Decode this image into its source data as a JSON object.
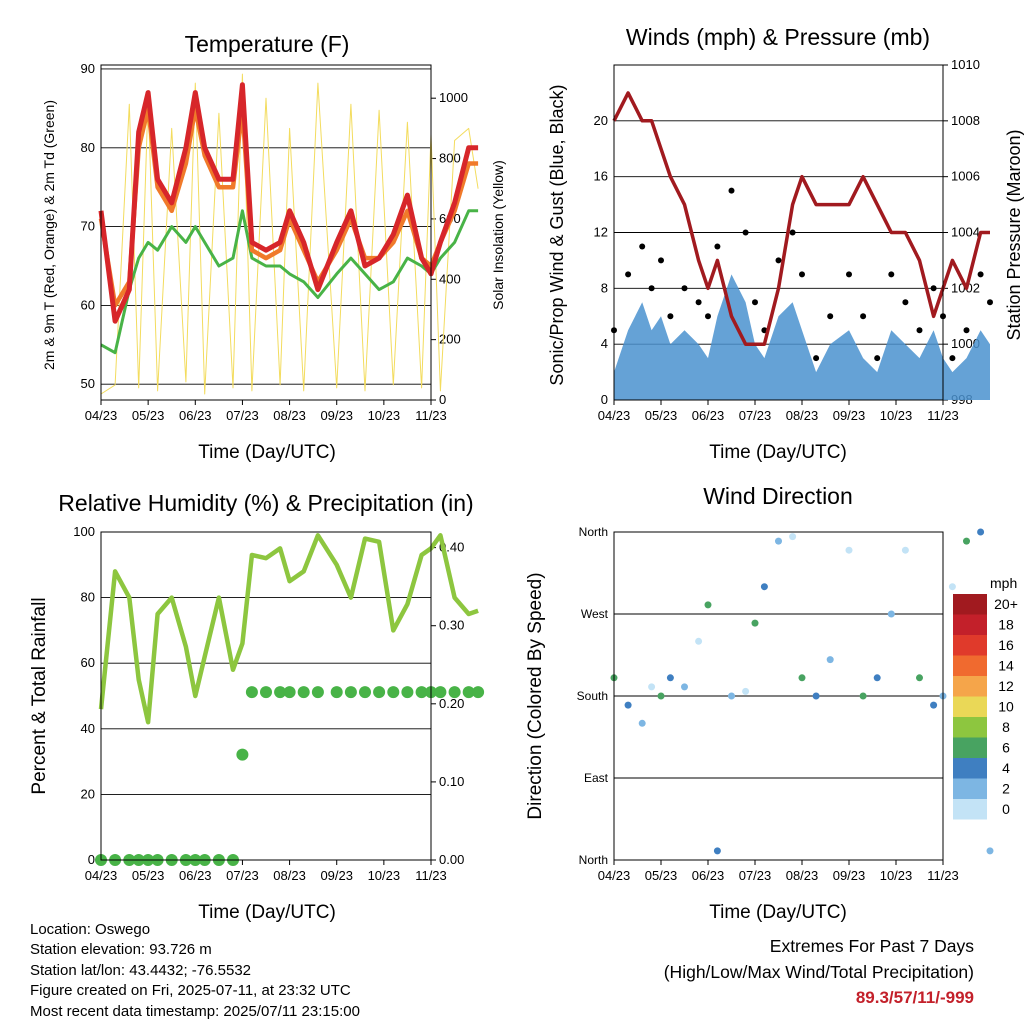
{
  "x_ticks": [
    "04/23",
    "05/23",
    "06/23",
    "07/23",
    "08/23",
    "09/23",
    "10/23",
    "11/23"
  ],
  "info": {
    "location": "Location: Oswego",
    "elevation": "Station elevation: 93.726 m",
    "latlon": "Station lat/lon: 43.4432; -76.5532",
    "created": "Figure created on Fri, 2025-07-11, at 23:32 UTC",
    "recent": "Most recent data timestamp: 2025/07/11 23:15:00"
  },
  "extremes": {
    "line1": "Extremes For Past 7 Days",
    "line2": "(High/Low/Max Wind/Total Precipitation)",
    "value": "89.3/57/11/-999",
    "color": "#c3202a"
  },
  "chart_data": [
    {
      "id": "temperature",
      "type": "line",
      "title": "Temperature (F)",
      "xlabel": "Time (Day/UTC)",
      "ylabel": "2m & 9m T (Red, Orange) & 2m Td (Green)",
      "ylabel_right": "Solar Insolation (Yellow)",
      "ylim": [
        48,
        90.5
      ],
      "ylim_right": [
        0,
        1110
      ],
      "yticks": [
        50,
        60,
        70,
        80,
        90
      ],
      "yticks_right": [
        0,
        200,
        400,
        600,
        800,
        1000
      ],
      "x": [
        0,
        0.3,
        0.6,
        0.8,
        1.0,
        1.2,
        1.5,
        1.8,
        2.0,
        2.2,
        2.5,
        2.8,
        3.0,
        3.2,
        3.5,
        3.8,
        4.0,
        4.3,
        4.6,
        5.0,
        5.3,
        5.6,
        5.9,
        6.2,
        6.5,
        6.8,
        7.0,
        7.2,
        7.5,
        7.8,
        8.0
      ],
      "series": [
        {
          "color": "#d7262a",
          "values": [
            72,
            58,
            62,
            82,
            87,
            76,
            73,
            80,
            87,
            80,
            76,
            76,
            88,
            68,
            67,
            68,
            72,
            68,
            62,
            68,
            72,
            65,
            66,
            69,
            74,
            66,
            64,
            68,
            73,
            80,
            80
          ]
        },
        {
          "color": "#f07a2a",
          "values": [
            71,
            60,
            63,
            80,
            85,
            75,
            72,
            78,
            85,
            79,
            75,
            75,
            85,
            67,
            66,
            67,
            71,
            67,
            63,
            67,
            71,
            66,
            66,
            68,
            72,
            66,
            65,
            68,
            72,
            78,
            78
          ]
        },
        {
          "color": "#48b347",
          "values": [
            55,
            54,
            62,
            66,
            68,
            67,
            70,
            68,
            70,
            68,
            65,
            66,
            72,
            66,
            65,
            65,
            64,
            63,
            61,
            64,
            66,
            64,
            62,
            63,
            66,
            65,
            64,
            66,
            68,
            72,
            72
          ]
        },
        {
          "color": "#f3dc5e",
          "values": [
            20,
            50,
            980,
            40,
            1000,
            30,
            900,
            60,
            1050,
            20,
            950,
            40,
            1080,
            30,
            1000,
            50,
            900,
            30,
            1050,
            40,
            980,
            30,
            960,
            50,
            920,
            40,
            880,
            30,
            860,
            900,
            700
          ]
        }
      ]
    },
    {
      "id": "winds",
      "type": "scatter",
      "title": "Winds (mph) & Pressure (mb)",
      "xlabel": "Time (Day/UTC)",
      "ylabel": "Sonic/Prop Wind & Gust (Blue, Black)",
      "ylabel_right": "Station Pressure (Maroon)",
      "ylim": [
        0,
        24
      ],
      "ylim_right": [
        998,
        1010
      ],
      "yticks": [
        0,
        4,
        8,
        12,
        16,
        20
      ],
      "yticks_right": [
        998,
        1000,
        1002,
        1004,
        1006,
        1008,
        1010
      ],
      "x": [
        0,
        0.3,
        0.6,
        0.8,
        1.0,
        1.2,
        1.5,
        1.8,
        2.0,
        2.2,
        2.5,
        2.8,
        3.0,
        3.2,
        3.5,
        3.8,
        4.0,
        4.3,
        4.6,
        5.0,
        5.3,
        5.6,
        5.9,
        6.2,
        6.5,
        6.8,
        7.0,
        7.2,
        7.5,
        7.8,
        8.0
      ],
      "series": [
        {
          "color": "#4a92cf",
          "values": [
            2,
            5,
            7,
            5,
            6,
            4,
            5,
            4,
            3,
            6,
            9,
            7,
            4,
            3,
            6,
            7,
            5,
            2,
            4,
            5,
            3,
            2,
            5,
            4,
            3,
            5,
            3,
            2,
            3,
            5,
            4
          ]
        },
        {
          "color": "#000000",
          "values": [
            5,
            9,
            11,
            8,
            10,
            6,
            8,
            7,
            6,
            11,
            15,
            12,
            7,
            5,
            10,
            12,
            9,
            3,
            6,
            9,
            6,
            3,
            9,
            7,
            5,
            8,
            6,
            3,
            5,
            9,
            7
          ]
        },
        {
          "color": "#a11a1f",
          "values": [
            1008,
            1009,
            1008,
            1008,
            1007,
            1006,
            1005,
            1003,
            1002,
            1003,
            1001,
            1000,
            1000,
            1000,
            1002,
            1005,
            1006,
            1005,
            1005,
            1005,
            1006,
            1005,
            1004,
            1004,
            1003,
            1001,
            1002,
            1003,
            1002,
            1004,
            1004
          ]
        }
      ]
    },
    {
      "id": "humidity",
      "type": "line",
      "title": "Relative Humidity (%) & Precipitation (in)",
      "xlabel": "Time (Day/UTC)",
      "ylabel": "Percent & Total Rainfall",
      "ylim": [
        0,
        100
      ],
      "ylim_right": [
        0,
        0.42
      ],
      "yticks": [
        0,
        20,
        40,
        60,
        80,
        100
      ],
      "yticks_right": [
        0.0,
        0.1,
        0.2,
        0.3,
        0.4
      ],
      "yticklabels_right": [
        "0.00",
        "0.10",
        "0.20",
        "0.30",
        "0.40"
      ],
      "x": [
        0,
        0.3,
        0.6,
        0.8,
        1.0,
        1.2,
        1.5,
        1.8,
        2.0,
        2.2,
        2.5,
        2.8,
        3.0,
        3.2,
        3.5,
        3.8,
        4.0,
        4.3,
        4.6,
        5.0,
        5.3,
        5.6,
        5.9,
        6.2,
        6.5,
        6.8,
        7.0,
        7.2,
        7.5,
        7.8,
        8.0
      ],
      "series": [
        {
          "color": "#8dc63f",
          "values": [
            46,
            88,
            80,
            55,
            42,
            75,
            80,
            65,
            50,
            62,
            80,
            58,
            66,
            93,
            92,
            95,
            85,
            88,
            99,
            90,
            80,
            98,
            97,
            70,
            78,
            93,
            95,
            99,
            80,
            75,
            76
          ]
        },
        {
          "color": "#48b347",
          "values": [
            0,
            0,
            0,
            0,
            0,
            0,
            0,
            0,
            0,
            0,
            0,
            0,
            0.135,
            0.215,
            0.215,
            0.215,
            0.215,
            0.215,
            0.215,
            0.215,
            0.215,
            0.215,
            0.215,
            0.215,
            0.215,
            0.215,
            0.215,
            0.215,
            0.215,
            0.215,
            0.215
          ]
        }
      ]
    },
    {
      "id": "direction",
      "type": "scatter",
      "title": "Wind Direction",
      "xlabel": "Time (Day/UTC)",
      "ylabel": "Direction (Colored By Speed)",
      "ylim": [
        0,
        360
      ],
      "yticks": [
        0,
        90,
        180,
        270,
        360
      ],
      "yticklabels": [
        "North",
        "East",
        "South",
        "West",
        "North"
      ],
      "x": [
        0,
        0.3,
        0.6,
        0.8,
        1.0,
        1.2,
        1.5,
        1.8,
        2.0,
        2.2,
        2.5,
        2.8,
        3.0,
        3.2,
        3.5,
        3.8,
        4.0,
        4.3,
        4.6,
        5.0,
        5.3,
        5.6,
        5.9,
        6.2,
        6.5,
        6.8,
        7.0,
        7.2,
        7.5,
        7.8,
        8.0
      ],
      "values": [
        200,
        170,
        150,
        190,
        180,
        200,
        190,
        240,
        280,
        10,
        180,
        185,
        260,
        300,
        350,
        355,
        200,
        180,
        220,
        340,
        180,
        200,
        270,
        340,
        200,
        170,
        180,
        300,
        350,
        360,
        10
      ],
      "colorbar": {
        "title": "mph",
        "labels": [
          "20+",
          "18",
          "16",
          "14",
          "12",
          "10",
          "8",
          "6",
          "4",
          "2",
          "0"
        ],
        "colors": [
          "#a11a1f",
          "#c3202a",
          "#e03a2b",
          "#f06a2f",
          "#f5a54a",
          "#ead857",
          "#8dc63f",
          "#48a361",
          "#3f7fc1",
          "#7db6e3",
          "#c3e3f6"
        ]
      }
    }
  ]
}
